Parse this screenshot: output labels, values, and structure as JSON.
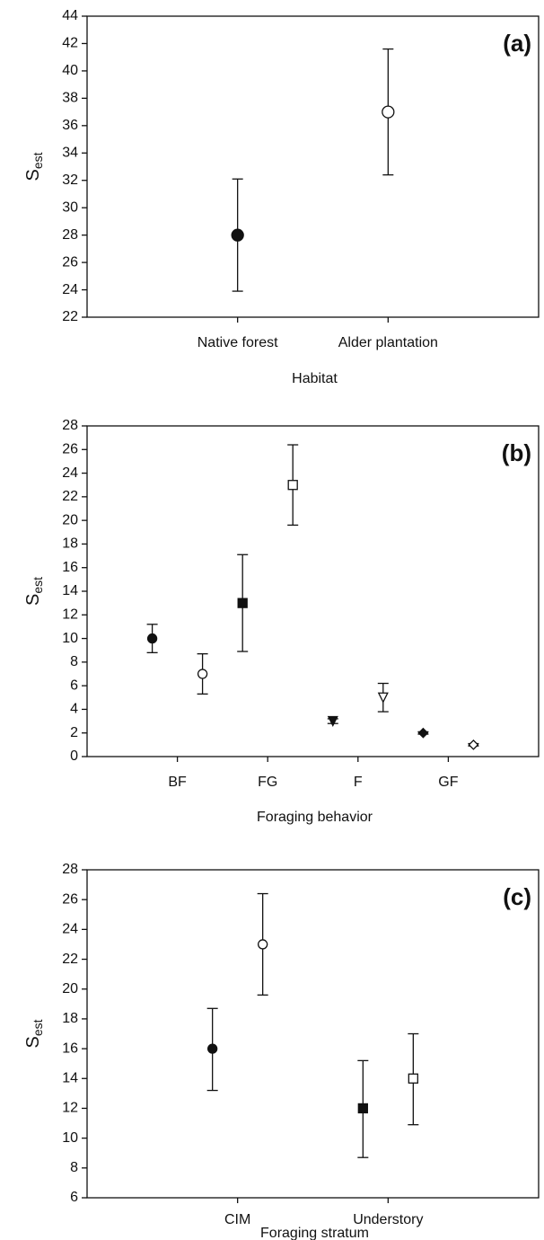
{
  "chart_data": [
    {
      "type": "errorbar",
      "label": "(a)",
      "ylabel": "S",
      "ylabel_sub": "est",
      "xlabel": "Habitat",
      "categories": [
        "Native forest",
        "Alder plantation"
      ],
      "ylim": [
        22,
        44
      ],
      "yticks": [
        22,
        24,
        26,
        28,
        30,
        32,
        34,
        36,
        38,
        40,
        42,
        44
      ],
      "series": [
        {
          "filled": true,
          "markers": [
            "circle",
            "circle"
          ],
          "values": [
            28,
            null
          ],
          "lower": [
            23.9,
            null
          ],
          "upper": [
            32.1,
            null
          ]
        },
        {
          "filled": false,
          "markers": [
            "circle",
            "circle"
          ],
          "values": [
            null,
            37
          ],
          "lower": [
            null,
            32.4
          ],
          "upper": [
            null,
            41.6
          ]
        }
      ]
    },
    {
      "type": "errorbar",
      "label": "(b)",
      "ylabel": "S",
      "ylabel_sub": "est",
      "xlabel": "Foraging behavior",
      "categories": [
        "BF",
        "FG",
        "F",
        "GF"
      ],
      "ylim": [
        0,
        28
      ],
      "yticks": [
        0,
        2,
        4,
        6,
        8,
        10,
        12,
        14,
        16,
        18,
        20,
        22,
        24,
        26,
        28
      ],
      "series": [
        {
          "filled": true,
          "markers": [
            "circle",
            "square",
            "triangle-down",
            "diamond"
          ],
          "values": [
            10,
            13,
            3,
            2
          ],
          "lower": [
            8.8,
            8.9,
            2.8,
            1.9
          ],
          "upper": [
            11.2,
            17.1,
            3.2,
            2.1
          ]
        },
        {
          "filled": false,
          "markers": [
            "circle",
            "square",
            "triangle-down",
            "diamond"
          ],
          "values": [
            7,
            23,
            5,
            1
          ],
          "lower": [
            5.3,
            19.6,
            3.8,
            0.9
          ],
          "upper": [
            8.7,
            26.4,
            6.2,
            1.1
          ]
        }
      ]
    },
    {
      "type": "errorbar",
      "label": "(c)",
      "ylabel": "S",
      "ylabel_sub": "est",
      "xlabel": "Foraging stratum",
      "categories": [
        "CIM",
        "Understory"
      ],
      "ylim": [
        6,
        28
      ],
      "yticks": [
        6,
        8,
        10,
        12,
        14,
        16,
        18,
        20,
        22,
        24,
        26,
        28
      ],
      "series": [
        {
          "filled": true,
          "markers": [
            "circle",
            "square"
          ],
          "values": [
            16,
            12
          ],
          "lower": [
            13.2,
            8.7
          ],
          "upper": [
            18.7,
            15.2
          ]
        },
        {
          "filled": false,
          "markers": [
            "circle",
            "square"
          ],
          "values": [
            23,
            14
          ],
          "lower": [
            19.6,
            10.9
          ],
          "upper": [
            26.4,
            17.0
          ]
        }
      ]
    }
  ]
}
